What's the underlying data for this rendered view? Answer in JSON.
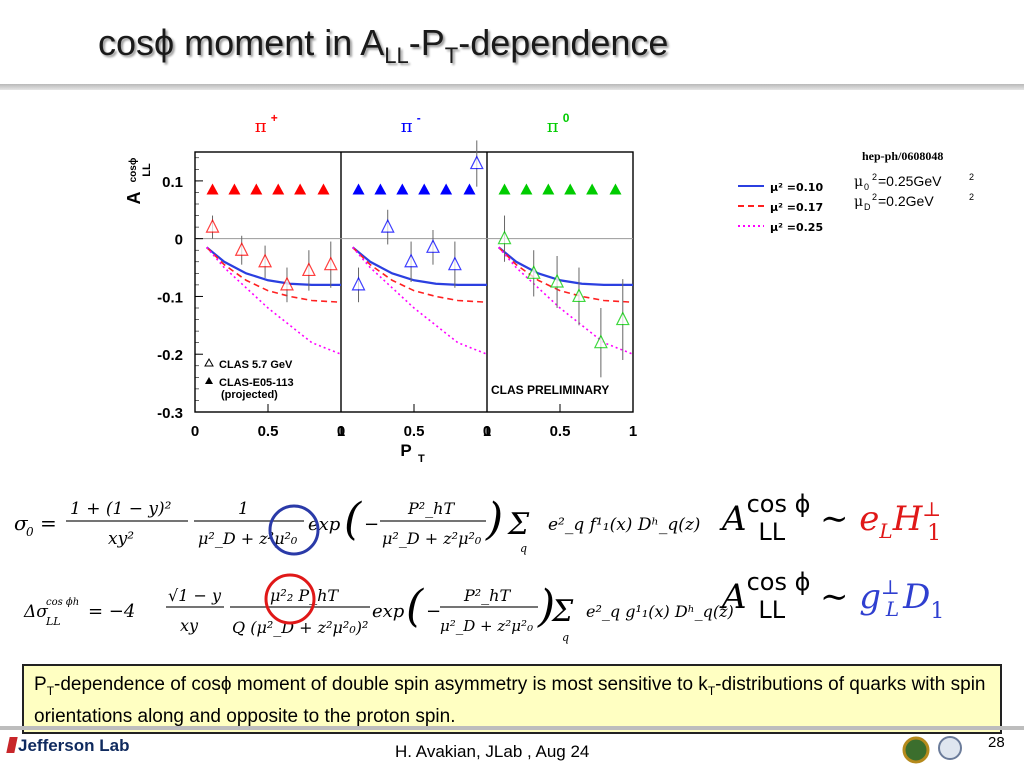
{
  "title": {
    "prefix": "cosϕ moment in A",
    "sub1": "LL",
    "mid": "-P",
    "sub2": "T",
    "suffix": "-dependence"
  },
  "chart_data": {
    "type": "scatter",
    "panels": [
      {
        "label": "π+",
        "color": "#ff0000",
        "clas_57": {
          "x": [
            0.12,
            0.32,
            0.48,
            0.63,
            0.78,
            0.93
          ],
          "y": [
            0.02,
            -0.02,
            -0.04,
            -0.08,
            -0.055,
            -0.045
          ],
          "err": [
            0.02,
            0.025,
            0.028,
            0.03,
            0.035,
            0.04
          ]
        },
        "projected": {
          "x": [
            0.12,
            0.27,
            0.42,
            0.57,
            0.72,
            0.88
          ],
          "y": [
            0.085,
            0.085,
            0.085,
            0.085,
            0.085,
            0.085
          ]
        }
      },
      {
        "label": "π-",
        "color": "#0000ff",
        "clas_57": {
          "x": [
            0.12,
            0.32,
            0.48,
            0.63,
            0.78,
            0.93
          ],
          "y": [
            -0.08,
            0.02,
            -0.04,
            -0.015,
            -0.045,
            0.13
          ],
          "err": [
            0.03,
            0.03,
            0.035,
            0.03,
            0.04,
            0.04
          ]
        },
        "projected": {
          "x": [
            0.12,
            0.27,
            0.42,
            0.57,
            0.72,
            0.88
          ],
          "y": [
            0.085,
            0.085,
            0.085,
            0.085,
            0.085,
            0.085
          ]
        }
      },
      {
        "label": "π0",
        "color": "#00cc00",
        "clas_57": {
          "x": [
            0.12,
            0.32,
            0.48,
            0.63,
            0.78,
            0.93
          ],
          "y": [
            0.0,
            -0.06,
            -0.075,
            -0.1,
            -0.18,
            -0.14
          ],
          "err": [
            0.04,
            0.04,
            0.045,
            0.05,
            0.06,
            0.07
          ]
        },
        "projected": {
          "x": [
            0.12,
            0.27,
            0.42,
            0.57,
            0.72,
            0.88
          ],
          "y": [
            0.085,
            0.085,
            0.085,
            0.085,
            0.085,
            0.085
          ]
        }
      }
    ],
    "curves": [
      {
        "name": "μ² =0.10",
        "color": "#2b3fe0",
        "style": "solid",
        "x": [
          0.08,
          0.2,
          0.35,
          0.5,
          0.65,
          0.8,
          1.0
        ],
        "y": [
          -0.015,
          -0.04,
          -0.06,
          -0.072,
          -0.078,
          -0.08,
          -0.08
        ]
      },
      {
        "name": "μ² =0.17",
        "color": "#ff2020",
        "style": "dashed",
        "x": [
          0.08,
          0.2,
          0.35,
          0.5,
          0.65,
          0.8,
          1.0
        ],
        "y": [
          -0.015,
          -0.045,
          -0.072,
          -0.09,
          -0.1,
          -0.107,
          -0.11
        ]
      },
      {
        "name": "μ² =0.25",
        "color": "#ff00ff",
        "style": "dotted",
        "x": [
          0.08,
          0.2,
          0.35,
          0.5,
          0.65,
          0.8,
          1.0
        ],
        "y": [
          -0.015,
          -0.05,
          -0.085,
          -0.12,
          -0.15,
          -0.18,
          -0.2
        ]
      }
    ],
    "ylim": [
      -0.3,
      0.15
    ],
    "xlim": [
      0,
      1
    ],
    "yticks": [
      "0.1",
      "0",
      "-0.1",
      "-0.2",
      "-0.3"
    ],
    "ytick_values": [
      0.1,
      0,
      -0.1,
      -0.2,
      -0.3
    ],
    "xticks": [
      "0",
      "0.5",
      "1"
    ],
    "ylabel": {
      "main": "A",
      "sup": "cosϕ",
      "sub": "LL"
    },
    "xlabel": {
      "main": "P",
      "sub": "T"
    },
    "legend_markers": [
      "CLAS 5.7 GeV",
      "CLAS-E05-113",
      "(projected)"
    ],
    "preliminary_label": "CLAS PRELIMINARY",
    "reference": "hep-ph/0608048",
    "params": [
      {
        "sym": "μ",
        "sub": "0",
        "text": "=0.25GeV"
      },
      {
        "sym": "μ",
        "sub": "D",
        "text": "=0.2GeV"
      }
    ],
    "pion_labels": [
      {
        "sym": "π",
        "sup": "+"
      },
      {
        "sym": "π",
        "sup": "-"
      },
      {
        "sym": "π",
        "sup": "0"
      }
    ]
  },
  "equations": {
    "sigma0": "σ₀ = (1+(1−y)²)/(xy²) · 1/(μ²_D + z²μ²₀) exp(−P²_hT/(μ²_D + z²μ²₀)) Σ_q e²_q fⁱ₁(x) Dʰ_q(z)",
    "delta_sigma": "Δσ^{cosϕh}_LL = −4 √(1−y)/(xy) · μ²₂ P_hT/(Q(μ²_D + z²μ²₀)²) exp(−P²_hT/(μ²_D + z²μ²₀)) Σ_q e²_q gⁱ₁(x) Dʰ_q(z)",
    "rel1": {
      "lhs": "A",
      "sup": "cos ϕ",
      "sub": "LL",
      "tilde": "∼",
      "rhs_a": "e",
      "rhs_a_sub": "L",
      "rhs_b": "H",
      "rhs_b_sup": "⊥",
      "rhs_b_sub": "1"
    },
    "rel2": {
      "lhs": "A",
      "sup": "cos ϕ",
      "sub": "LL",
      "tilde": "∼",
      "rhs_a": "g",
      "rhs_a_sup": "⊥",
      "rhs_a_sub": "L",
      "rhs_b": "D",
      "rhs_b_sub": "1"
    }
  },
  "callout": {
    "p1": "P",
    "p1_sub": "T",
    "text1": "-dependence of cosϕ moment of double spin asymmetry is most sensitive  to k",
    "k_sub": "T",
    "text2": "-distributions of quarks with spin orientations along and opposite to the proton spin."
  },
  "footer": {
    "logo": "Jefferson Lab",
    "text": "H. Avakian, JLab ,  Aug 24",
    "page": "28"
  },
  "colors": {
    "red": "#ff0000",
    "blue": "#0000ff",
    "green": "#00cc00",
    "callout_bg": "#ffffc2"
  }
}
